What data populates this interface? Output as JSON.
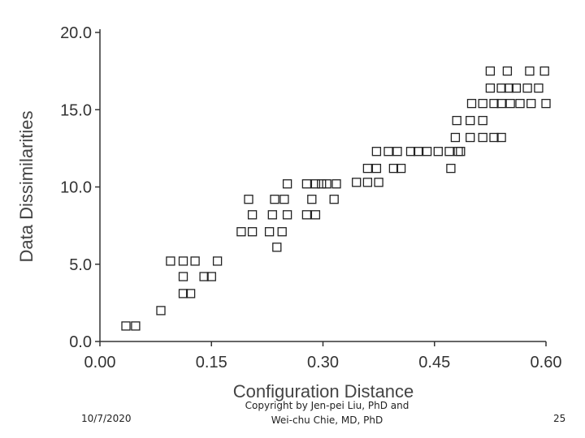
{
  "chart_data": {
    "type": "scatter",
    "title": "",
    "xlabel": "Configuration Distance",
    "ylabel": "Data Dissimilarities",
    "xlim": [
      0.0,
      0.6
    ],
    "ylim": [
      0.0,
      20.0
    ],
    "xticks": [
      "0.00",
      "0.15",
      "0.30",
      "0.45",
      "0.60"
    ],
    "yticks": [
      "0.0",
      "5.0",
      "10.0",
      "15.0",
      "20.0"
    ],
    "grid": false,
    "marker": "open-square",
    "points": [
      [
        0.035,
        1.0
      ],
      [
        0.048,
        1.0
      ],
      [
        0.082,
        2.0
      ],
      [
        0.095,
        5.2
      ],
      [
        0.112,
        5.2
      ],
      [
        0.128,
        5.2
      ],
      [
        0.158,
        5.2
      ],
      [
        0.112,
        4.2
      ],
      [
        0.14,
        4.2
      ],
      [
        0.15,
        4.2
      ],
      [
        0.112,
        3.1
      ],
      [
        0.122,
        3.1
      ],
      [
        0.19,
        7.1
      ],
      [
        0.205,
        7.1
      ],
      [
        0.228,
        7.1
      ],
      [
        0.245,
        7.1
      ],
      [
        0.205,
        8.2
      ],
      [
        0.232,
        8.2
      ],
      [
        0.252,
        8.2
      ],
      [
        0.278,
        8.2
      ],
      [
        0.29,
        8.2
      ],
      [
        0.2,
        9.2
      ],
      [
        0.235,
        9.2
      ],
      [
        0.248,
        9.2
      ],
      [
        0.285,
        9.2
      ],
      [
        0.315,
        9.2
      ],
      [
        0.238,
        6.1
      ],
      [
        0.252,
        10.2
      ],
      [
        0.278,
        10.2
      ],
      [
        0.29,
        10.2
      ],
      [
        0.298,
        10.2
      ],
      [
        0.305,
        10.2
      ],
      [
        0.318,
        10.2
      ],
      [
        0.345,
        10.3
      ],
      [
        0.36,
        10.3
      ],
      [
        0.375,
        10.3
      ],
      [
        0.36,
        11.2
      ],
      [
        0.372,
        11.2
      ],
      [
        0.395,
        11.2
      ],
      [
        0.405,
        11.2
      ],
      [
        0.372,
        12.3
      ],
      [
        0.388,
        12.3
      ],
      [
        0.4,
        12.3
      ],
      [
        0.418,
        12.3
      ],
      [
        0.428,
        12.3
      ],
      [
        0.44,
        12.3
      ],
      [
        0.455,
        12.3
      ],
      [
        0.47,
        12.3
      ],
      [
        0.485,
        12.3
      ],
      [
        0.472,
        11.2
      ],
      [
        0.482,
        12.3
      ],
      [
        0.478,
        13.2
      ],
      [
        0.498,
        13.2
      ],
      [
        0.515,
        13.2
      ],
      [
        0.53,
        13.2
      ],
      [
        0.54,
        13.2
      ],
      [
        0.48,
        14.3
      ],
      [
        0.498,
        14.3
      ],
      [
        0.515,
        14.3
      ],
      [
        0.5,
        15.4
      ],
      [
        0.515,
        15.4
      ],
      [
        0.53,
        15.4
      ],
      [
        0.54,
        15.4
      ],
      [
        0.552,
        15.4
      ],
      [
        0.565,
        15.4
      ],
      [
        0.58,
        15.4
      ],
      [
        0.6,
        15.4
      ],
      [
        0.525,
        16.4
      ],
      [
        0.54,
        16.4
      ],
      [
        0.55,
        16.4
      ],
      [
        0.56,
        16.4
      ],
      [
        0.575,
        16.4
      ],
      [
        0.59,
        16.4
      ],
      [
        0.525,
        17.5
      ],
      [
        0.548,
        17.5
      ],
      [
        0.578,
        17.5
      ],
      [
        0.598,
        17.5
      ]
    ]
  },
  "footer": {
    "date": "10/7/2020",
    "copyright_line1": "Copyright by Jen-pei Liu, PhD and",
    "copyright_line2": "Wei-chu Chie, MD, PhD",
    "page": "25"
  }
}
